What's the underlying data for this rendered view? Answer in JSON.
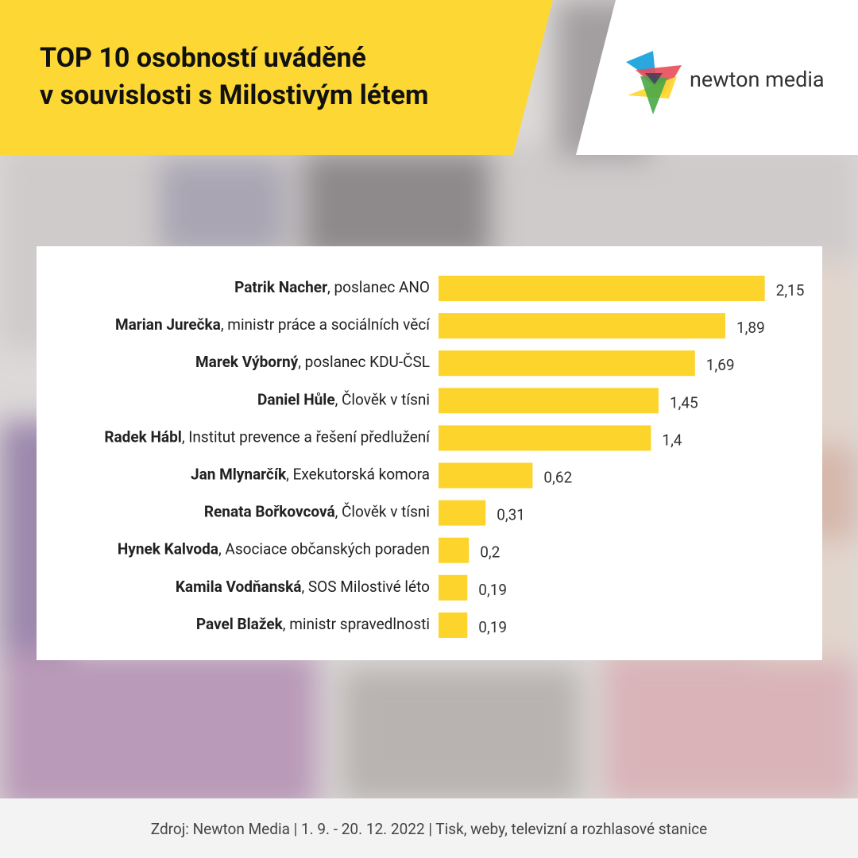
{
  "header": {
    "title_lines": [
      "TOP 10 osobností uváděné",
      "v souvislosti s Milostivým létem"
    ],
    "logo": "newton media"
  },
  "chart_data": {
    "type": "bar",
    "orientation": "horizontal",
    "categories": [
      "Patrik Nacher, poslanec ANO",
      "Marian Jurečka, ministr práce a sociálních věcí",
      "Marek Výborný, poslanec KDU-ČSL",
      "Daniel Hůle, Člověk v tísni",
      "Radek Hábl, Institut prevence a řešení předlužení",
      "Jan Mlynarčík, Exekutorská komora",
      "Renata Bořkovcová, Člověk v tísni",
      "Hynek Kalvoda, Asociace občanských poraden",
      "Kamila Vodňanská, SOS Milostivé léto",
      "Pavel Blažek, ministr spravedlnosti"
    ],
    "values": [
      2.15,
      1.89,
      1.69,
      1.45,
      1.4,
      0.62,
      0.31,
      0.2,
      0.19,
      0.19
    ],
    "value_labels": [
      "2,15",
      "1,89",
      "1,69",
      "1,45",
      "1,4",
      "0,62",
      "0,31",
      "0,2",
      "0,19",
      "0,19"
    ],
    "color": "#fcd42c"
  },
  "footer": {
    "source": "Zdroj: Newton Media | 1. 9. - 20. 12. 2022 | Tisk, weby, televizní a rozhlasové stanice"
  }
}
